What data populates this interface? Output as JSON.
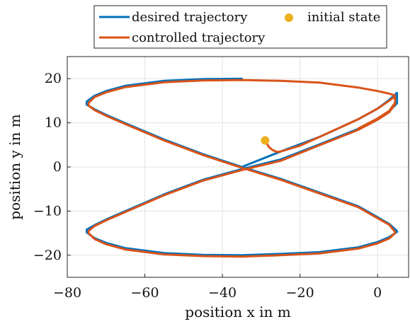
{
  "chart_data": {
    "type": "line",
    "title": "",
    "xlabel": "position x in m",
    "ylabel": "position y in m",
    "xlim": [
      -80,
      8
    ],
    "ylim": [
      -25,
      25
    ],
    "xticks": [
      -80,
      -60,
      -40,
      -20,
      0
    ],
    "yticks": [
      -20,
      -10,
      0,
      10,
      20
    ],
    "xtick_labels": [
      "−80",
      "−60",
      "−40",
      "−20",
      "0"
    ],
    "ytick_labels": [
      "−20",
      "−10",
      "0",
      "10",
      "20"
    ],
    "grid": true,
    "legend": {
      "placement": "top-outside",
      "columns": 2
    },
    "series": [
      {
        "name": "desired trajectory",
        "kind": "line",
        "color": "#0072BD",
        "x": [
          -35,
          -25,
          -15,
          -5,
          0,
          3,
          5,
          5,
          3,
          0,
          -5,
          -15,
          -25,
          -35,
          -45,
          -55,
          -65,
          -70,
          -73,
          -75,
          -75,
          -73,
          -70,
          -65,
          -55,
          -45,
          -35,
          -25,
          -15,
          -5,
          0,
          3,
          5,
          5,
          3,
          0,
          -5,
          -15,
          -25,
          -35,
          -45,
          -55,
          -65,
          -70,
          -73,
          -75,
          -75,
          -73,
          -70,
          -65,
          -55,
          -45,
          -35
        ],
        "y": [
          0,
          3.5,
          6.8,
          10.8,
          13.2,
          15.2,
          16.8,
          14.4,
          12.6,
          10.9,
          8.6,
          5.1,
          1.7,
          -0.5,
          -2.9,
          -6.2,
          -10.0,
          -11.9,
          -13.2,
          -14.2,
          -14.8,
          -16.1,
          -17.2,
          -18.4,
          -19.5,
          -19.9,
          -20.0,
          -19.7,
          -19.3,
          -18.2,
          -17.0,
          -15.9,
          -14.7,
          -14.5,
          -12.9,
          -11.4,
          -8.9,
          -5.8,
          -2.7,
          0,
          2.9,
          6.2,
          9.9,
          11.8,
          13.1,
          14.1,
          14.8,
          16.1,
          17.2,
          18.4,
          19.5,
          19.9,
          20.0
        ]
      },
      {
        "name": "controlled trajectory",
        "kind": "line",
        "color": "#D95319",
        "x": [
          -29,
          -28,
          -27,
          -26,
          -25,
          -20,
          -15,
          -5,
          0,
          3,
          4.5,
          4.5,
          3,
          0,
          -5,
          -15,
          -25,
          -35,
          -45,
          -55,
          -65,
          -70,
          -73,
          -74.5,
          -74.5,
          -73,
          -70,
          -65,
          -55,
          -45,
          -35,
          -25,
          -15,
          -5,
          0,
          3,
          4.5,
          4.5,
          3,
          0,
          -5,
          -15,
          -25,
          -35,
          -45,
          -55,
          -65,
          -70,
          -73,
          -74.5,
          -74.5,
          -73,
          -70,
          -65,
          -55,
          -45,
          -35,
          -25,
          -15,
          -5,
          0,
          3,
          4.5,
          4.5,
          3,
          0,
          -5
        ],
        "y": [
          6,
          4.5,
          3.8,
          3.4,
          3.5,
          4.8,
          6.8,
          10.8,
          13.2,
          15.0,
          16.0,
          14.2,
          12.4,
          10.7,
          8.4,
          4.9,
          1.4,
          -0.7,
          -3.1,
          -6.4,
          -10.2,
          -12.1,
          -13.4,
          -14.5,
          -15.0,
          -16.3,
          -17.5,
          -18.7,
          -19.8,
          -20.2,
          -20.3,
          -20.0,
          -19.6,
          -18.5,
          -17.3,
          -16.2,
          -15.0,
          -14.7,
          -13.1,
          -11.6,
          -9.1,
          -6.0,
          -2.9,
          -0.2,
          2.7,
          6.0,
          9.7,
          11.6,
          12.9,
          13.9,
          14.5,
          15.8,
          16.9,
          18.1,
          19.2,
          19.6,
          19.7,
          19.5,
          19.1,
          18.0,
          17.2,
          16.6,
          16.2,
          14.5,
          12.7,
          11.0,
          8.7
        ]
      },
      {
        "name": "initial state",
        "kind": "marker",
        "color": "#EDB120",
        "x": [
          -29
        ],
        "y": [
          6
        ]
      }
    ]
  }
}
